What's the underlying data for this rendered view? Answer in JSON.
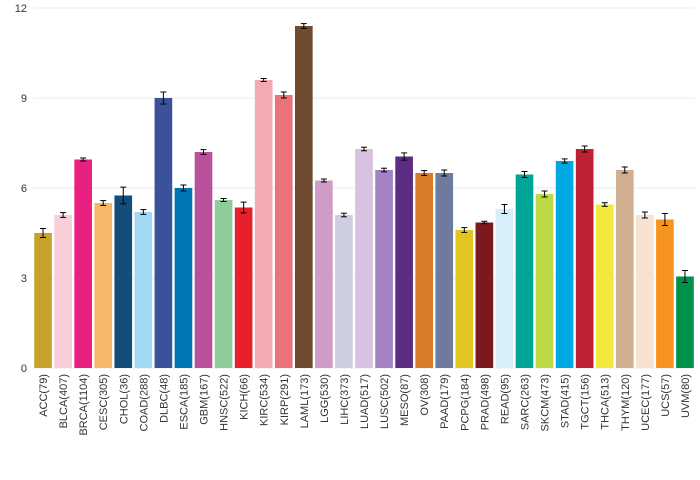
{
  "chart_data": {
    "type": "bar",
    "title": "",
    "xlabel": "",
    "ylabel": "",
    "ylim": [
      0,
      12
    ],
    "yticks": [
      0,
      3,
      6,
      9,
      12
    ],
    "grid": "horizontal",
    "error_bars": true,
    "categories": [
      "ACC(79)",
      "BLCA(407)",
      "BRCA(1104)",
      "CESC(305)",
      "CHOL(36)",
      "COAD(288)",
      "DLBC(48)",
      "ESCA(185)",
      "GBM(167)",
      "HNSC(522)",
      "KICH(66)",
      "KIRC(534)",
      "KIRP(291)",
      "LAML(173)",
      "LGG(530)",
      "LIHC(373)",
      "LUAD(517)",
      "LUSC(502)",
      "MESO(87)",
      "OV(308)",
      "PAAD(179)",
      "PCPG(184)",
      "PRAD(498)",
      "READ(95)",
      "SARC(263)",
      "SKCM(473)",
      "STAD(415)",
      "TGCT(156)",
      "THCA(513)",
      "THYM(120)",
      "UCEC(177)",
      "UCS(57)",
      "UVM(80)"
    ],
    "values": [
      4.5,
      5.1,
      6.95,
      5.5,
      5.75,
      5.2,
      9.0,
      6.0,
      7.2,
      5.6,
      5.35,
      9.6,
      9.1,
      11.4,
      6.25,
      5.1,
      7.3,
      6.6,
      7.05,
      6.5,
      6.5,
      4.6,
      4.85,
      5.3,
      6.45,
      5.8,
      6.9,
      7.3,
      5.45,
      6.6,
      5.1,
      4.95,
      3.05
    ],
    "errors": [
      0.15,
      0.08,
      0.05,
      0.08,
      0.28,
      0.08,
      0.2,
      0.1,
      0.08,
      0.05,
      0.18,
      0.05,
      0.1,
      0.08,
      0.05,
      0.06,
      0.06,
      0.06,
      0.12,
      0.08,
      0.1,
      0.08,
      0.04,
      0.15,
      0.1,
      0.1,
      0.07,
      0.1,
      0.06,
      0.1,
      0.1,
      0.2,
      0.2
    ],
    "colors": [
      "#c8a32b",
      "#f8cfd9",
      "#e8207f",
      "#f6b76b",
      "#144c7a",
      "#a3d8f4",
      "#3b529b",
      "#0076b5",
      "#b8509b",
      "#8fcc9b",
      "#e8202b",
      "#f4aab0",
      "#ea737a",
      "#6e4a2e",
      "#d19bc8",
      "#cdcfde",
      "#d8c1e1",
      "#a282c0",
      "#5b2c82",
      "#d97b28",
      "#6f7b9e",
      "#e3c522",
      "#7b1a1e",
      "#d8eef8",
      "#00a596",
      "#bed946",
      "#00a9e4",
      "#bd2232",
      "#f1e93c",
      "#d1af91",
      "#f7e1d0",
      "#f79420",
      "#00924a"
    ]
  }
}
